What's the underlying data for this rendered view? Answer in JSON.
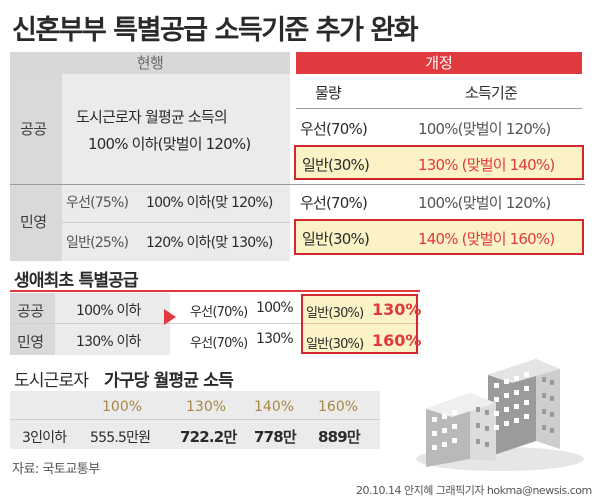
{
  "title": {
    "main": "신혼부부 특별공급 소득기준 추가 완화"
  },
  "table1": {
    "header_current": "현행",
    "header_revised": "개정",
    "col_quantity": "물량",
    "col_income": "소득기준",
    "public": {
      "label": "공공",
      "current_line1": "도시근로자 월평균 소득의",
      "current_line2": "100% 이하(맞벌이 120%)",
      "row1_qty": "우선(70%)",
      "row1_income": "100%(맞벌이 120%)",
      "row2_qty": "일반(30%)",
      "row2_income": "130% (맞벌이 140%)"
    },
    "private": {
      "label": "민영",
      "cur1_type": "우선(75%)",
      "cur1_val": "100% 이하(맞 120%)",
      "cur2_type": "일반(25%)",
      "cur2_val": "120% 이하(맞 130%)",
      "row1_qty": "우선(70%)",
      "row1_income": "100%(맞벌이 120%)",
      "row2_qty": "일반(30%)",
      "row2_income": "140% (맞벌이 160%)"
    }
  },
  "section2": {
    "title": "생애최초 특별공급",
    "public": {
      "label": "공공",
      "current": "100% 이하",
      "priority": "우선(70%)",
      "priority_val": "100%",
      "general": "일반(30%)",
      "general_val": "130%"
    },
    "private": {
      "label": "민영",
      "current": "130% 이하",
      "priority": "우선(70%)",
      "priority_val": "130%",
      "general": "일반(30%)",
      "general_val": "160%"
    }
  },
  "section3": {
    "title_a": "도시근로자",
    "title_b": "가구당 월평균 소득",
    "percents": [
      "100%",
      "130%",
      "140%",
      "160%"
    ],
    "row_label": "3인이하",
    "values": [
      "555.5만원",
      "722.2만",
      "778만",
      "889만"
    ]
  },
  "source": "자료: 국토교통부",
  "credit": "20.10.14 안지혜 그래픽기자 hokma@newsis.com",
  "colors": {
    "accent_red": "#e03a3e",
    "highlight_fill": "#fbf2c6",
    "gold": "#a8864a"
  }
}
